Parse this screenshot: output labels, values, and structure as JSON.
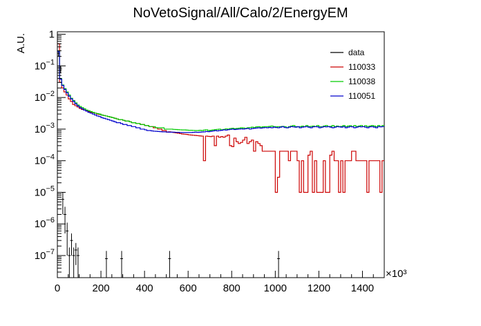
{
  "chart_data": {
    "type": "histogram",
    "title": "NoVetoSignal/All/Calo/2/EnergyEM",
    "xlabel": "",
    "ylabel": "A.U.",
    "x_multiplier": "×10³",
    "xlim": [
      0,
      1500
    ],
    "ylim": [
      2e-08,
      1.2
    ],
    "yscale": "log",
    "x_ticks": [
      0,
      200,
      400,
      600,
      800,
      1000,
      1200,
      1400
    ],
    "x_tick_labels": [
      "0",
      "200",
      "400",
      "600",
      "800",
      "1000",
      "1200",
      "1400"
    ],
    "y_ticks": [
      1e-07,
      1e-06,
      1e-05,
      0.0001,
      0.001,
      0.01,
      0.1,
      1
    ],
    "y_tick_labels": [
      {
        "base": "10",
        "exp": "−7"
      },
      {
        "base": "10",
        "exp": "−6"
      },
      {
        "base": "10",
        "exp": "−5"
      },
      {
        "base": "10",
        "exp": "−4"
      },
      {
        "base": "10",
        "exp": "−3"
      },
      {
        "base": "10",
        "exp": "−2"
      },
      {
        "base": "10",
        "exp": "−1"
      },
      {
        "base": "1",
        "exp": ""
      }
    ],
    "grid": false,
    "legend_position": "top-right",
    "bin_width": 10,
    "series": [
      {
        "name": "data",
        "color": "#000000",
        "style": "points",
        "points": [
          {
            "x": 5,
            "y": 0.25,
            "err": 0.05
          },
          {
            "x": 15,
            "y": 0.08,
            "err": 0.02
          },
          {
            "x": 25,
            "y": 6e-06,
            "err": 4e-06
          },
          {
            "x": 35,
            "y": 2e-06,
            "err": 1.5e-06
          },
          {
            "x": 45,
            "y": 6e-07,
            "err": 5e-07
          },
          {
            "x": 55,
            "y": 1e-07,
            "err": 8e-08
          },
          {
            "x": 65,
            "y": 3e-07,
            "err": 2e-07
          },
          {
            "x": 75,
            "y": 1e-07,
            "err": 8e-08
          },
          {
            "x": 85,
            "y": 1.5e-07,
            "err": 1e-07
          },
          {
            "x": 95,
            "y": 1e-07,
            "err": 8e-08
          },
          {
            "x": 225,
            "y": 8e-08,
            "err": 6e-08
          },
          {
            "x": 295,
            "y": 8e-08,
            "err": 6e-08
          },
          {
            "x": 515,
            "y": 8e-08,
            "err": 6e-08
          },
          {
            "x": 1015,
            "y": 8e-08,
            "err": 6e-08
          }
        ]
      },
      {
        "name": "110033",
        "color": "#cc0000",
        "style": "step",
        "values": [
          0.5,
          0.03,
          0.02,
          0.015,
          0.012,
          0.009,
          0.0075,
          0.006,
          0.0055,
          0.005,
          0.0045,
          0.0042,
          0.004,
          0.0038,
          0.0036,
          0.0034,
          0.0033,
          0.0032,
          0.003,
          0.0029,
          0.0028,
          0.0027,
          0.0026,
          0.0025,
          0.0024,
          0.0023,
          0.0022,
          0.0021,
          0.002,
          0.002,
          0.0019,
          0.0018,
          0.0018,
          0.0017,
          0.0016,
          0.0016,
          0.0015,
          0.0015,
          0.0014,
          0.0014,
          0.0013,
          0.0013,
          0.0012,
          0.0012,
          0.0011,
          0.0011,
          0.001,
          0.001,
          0.0009,
          0.0009,
          0.0008,
          0.00082,
          0.0008,
          0.00078,
          0.00076,
          0.00074,
          0.00072,
          0.0007,
          0.00069,
          0.00068,
          0.00066,
          0.00065,
          0.00064,
          0.00063,
          0.00062,
          0.00061,
          0.0006,
          0.0001,
          0.0006,
          0.00059,
          0.00058,
          0.0006,
          0.0003,
          0.0006,
          0.00055,
          0.00058,
          0.00055,
          0.0006,
          0.00065,
          0.0003,
          0.00028,
          0.00052,
          0.0004,
          0.00035,
          0.00038,
          0.00045,
          0.00055,
          0.00035,
          0.0004,
          0.00045,
          0.0002,
          0.0004,
          0.00035,
          0.0003,
          0.0002,
          0.0002,
          0.0002,
          0.0002,
          0.0002,
          0.0002,
          1e-05,
          3e-05,
          0.0002,
          0.0002,
          0.0002,
          0.0002,
          0.0001,
          0.0002,
          0.0002,
          0.0002,
          0.0001,
          1e-05,
          0.0001,
          1e-05,
          1e-05,
          0.00015,
          0.0002,
          1e-05,
          0.0001,
          1e-05,
          1e-05,
          1e-05,
          0.0001,
          1e-05,
          1e-05,
          0.00015,
          0.0002,
          0.0001,
          0.0001,
          1e-05,
          0.0001,
          1e-05,
          0.0001,
          0.0001,
          0.0001,
          0.0002,
          0.0002,
          0.0001,
          0.0001,
          0.0001,
          0.0001,
          0.0001,
          1e-05,
          0.0001,
          0.0001,
          0.0001,
          0.0001,
          0.0001,
          1e-05,
          0.0001
        ]
      },
      {
        "name": "110038",
        "color": "#00cc00",
        "style": "step",
        "values": [
          0.3,
          0.04,
          0.025,
          0.019,
          0.015,
          0.012,
          0.0095,
          0.008,
          0.0068,
          0.0058,
          0.0052,
          0.0048,
          0.0044,
          0.004,
          0.0038,
          0.0036,
          0.0034,
          0.0032,
          0.0031,
          0.003,
          0.0028,
          0.0027,
          0.0026,
          0.0025,
          0.0024,
          0.0023,
          0.0022,
          0.0021,
          0.002,
          0.002,
          0.0019,
          0.0018,
          0.0018,
          0.0017,
          0.0016,
          0.0016,
          0.0015,
          0.0015,
          0.0014,
          0.0014,
          0.0013,
          0.0013,
          0.0012,
          0.0012,
          0.0012,
          0.0011,
          0.0011,
          0.0011,
          0.0011,
          0.001,
          0.001,
          0.001,
          0.001,
          0.00098,
          0.00097,
          0.00096,
          0.00095,
          0.00094,
          0.00094,
          0.00093,
          0.00092,
          0.00092,
          0.00091,
          0.0009,
          0.0009,
          0.00092,
          0.0009,
          0.00093,
          0.00095,
          0.0009,
          0.00092,
          0.00094,
          0.00096,
          0.00098,
          0.001,
          0.00095,
          0.00098,
          0.00102,
          0.001,
          0.00104,
          0.00106,
          0.00103,
          0.00105,
          0.00107,
          0.0011,
          0.00108,
          0.00105,
          0.0011,
          0.00112,
          0.00115,
          0.00112,
          0.00118,
          0.0012,
          0.00115,
          0.00118,
          0.0012,
          0.0012,
          0.00122,
          0.00125,
          0.0012,
          0.00118,
          0.0012,
          0.0012,
          0.00122,
          0.0012,
          0.0011,
          0.0012,
          0.00125,
          0.0013,
          0.0012,
          0.00118,
          0.0012,
          0.00124,
          0.0012,
          0.0013,
          0.0012,
          0.00122,
          0.00125,
          0.0012,
          0.0013,
          0.0012,
          0.00118,
          0.00125,
          0.0013,
          0.0012,
          0.00122,
          0.0013,
          0.0012,
          0.00125,
          0.0012,
          0.00122,
          0.0013,
          0.0012,
          0.00125,
          0.00128,
          0.0012,
          0.0013,
          0.0012,
          0.00125,
          0.0013,
          0.0012,
          0.00128,
          0.0012,
          0.00125,
          0.0013,
          0.00125,
          0.0012,
          0.0013,
          0.0012,
          0.0013
        ]
      },
      {
        "name": "110051",
        "color": "#0000cc",
        "style": "step",
        "values": [
          0.28,
          0.038,
          0.024,
          0.018,
          0.014,
          0.011,
          0.009,
          0.0075,
          0.0063,
          0.0054,
          0.0048,
          0.0044,
          0.004,
          0.0037,
          0.0034,
          0.0032,
          0.003,
          0.0028,
          0.0026,
          0.0025,
          0.0023,
          0.0022,
          0.0021,
          0.002,
          0.0019,
          0.0018,
          0.0017,
          0.0016,
          0.0016,
          0.0015,
          0.0014,
          0.0014,
          0.0013,
          0.0013,
          0.0012,
          0.0012,
          0.0011,
          0.0011,
          0.001,
          0.001,
          0.00095,
          0.0009,
          0.0009,
          0.00088,
          0.00086,
          0.00085,
          0.00084,
          0.00083,
          0.00082,
          0.00082,
          0.00081,
          0.0008,
          0.0008,
          0.0008,
          0.00079,
          0.00079,
          0.00078,
          0.00078,
          0.00078,
          0.00078,
          0.00078,
          0.00078,
          0.00079,
          0.0008,
          0.00079,
          0.0008,
          0.00081,
          0.00082,
          0.00084,
          0.00083,
          0.00085,
          0.00087,
          0.0009,
          0.00088,
          0.0009,
          0.00092,
          0.00095,
          0.00093,
          0.00096,
          0.00098,
          0.001,
          0.00097,
          0.00099,
          0.001,
          0.00102,
          0.001,
          0.00103,
          0.00105,
          0.001,
          0.00104,
          0.00106,
          0.00108,
          0.0011,
          0.00107,
          0.0011,
          0.00112,
          0.0011,
          0.00113,
          0.0011,
          0.00115,
          0.00112,
          0.0011,
          0.00115,
          0.0012,
          0.00112,
          0.0011,
          0.00115,
          0.0012,
          0.00118,
          0.00115,
          0.0012,
          0.0011,
          0.00115,
          0.00118,
          0.0012,
          0.00115,
          0.0011,
          0.00118,
          0.0012,
          0.00118,
          0.0011,
          0.00115,
          0.0012,
          0.00118,
          0.0012,
          0.00115,
          0.0011,
          0.00115,
          0.0012,
          0.00118,
          0.00115,
          0.0012,
          0.0011,
          0.00115,
          0.0012,
          0.00118,
          0.0011,
          0.00115,
          0.0012,
          0.00118,
          0.0012,
          0.00115,
          0.0011,
          0.00118,
          0.0012,
          0.00115,
          0.0011,
          0.0012,
          0.00118,
          0.0012
        ]
      }
    ]
  }
}
